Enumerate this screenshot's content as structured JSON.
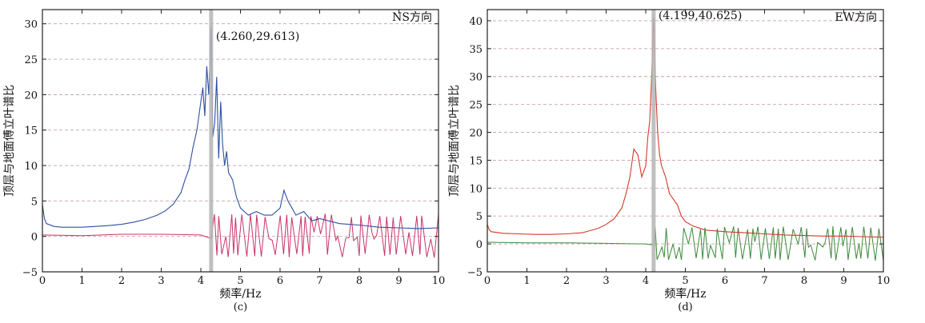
{
  "chart_data": [
    {
      "type": "line",
      "subtitle": "(c)",
      "corner_label": "NS方向",
      "xlabel": "频率/Hz",
      "ylabel": "顶层与地面傅立叶谱比",
      "xlim": [
        0,
        10
      ],
      "ylim": [
        -5,
        32
      ],
      "x_ticks": [
        "0",
        "1",
        "2",
        "3",
        "4",
        "5",
        "6",
        "7",
        "8",
        "9",
        "10"
      ],
      "y_ticks": [
        "−5",
        "0",
        "5",
        "10",
        "15",
        "20",
        "25",
        "30"
      ],
      "y_tick_values": [
        -5,
        0,
        5,
        10,
        15,
        20,
        25,
        30
      ],
      "grid": true,
      "peak": {
        "x": 4.26,
        "y": 29.613,
        "label": "(4.260,29.613)"
      },
      "colors": {
        "ratio": "#2e4fa0",
        "phase": "#c8336b",
        "marker": "#b5b5b5"
      },
      "series": [
        {
          "role": "ratio",
          "x": [
            0,
            0.05,
            0.1,
            0.3,
            0.5,
            0.8,
            1.0,
            1.3,
            1.6,
            2.0,
            2.3,
            2.6,
            2.9,
            3.1,
            3.3,
            3.5,
            3.6,
            3.7,
            3.8,
            3.9,
            4.0,
            4.05,
            4.1,
            4.15,
            4.2,
            4.26,
            4.3,
            4.35,
            4.4,
            4.45,
            4.5,
            4.55,
            4.6,
            4.65,
            4.7,
            4.8,
            4.9,
            5.0,
            5.2,
            5.4,
            5.6,
            5.8,
            6.0,
            6.1,
            6.2,
            6.3,
            6.4,
            6.6,
            6.8,
            7.0,
            7.5,
            8.0,
            8.5,
            9.0,
            9.5,
            10.0
          ],
          "values": [
            4.5,
            2.5,
            1.8,
            1.4,
            1.3,
            1.3,
            1.3,
            1.4,
            1.5,
            1.7,
            2.0,
            2.4,
            3.0,
            3.6,
            4.5,
            6.2,
            8.0,
            9.5,
            12.5,
            15.0,
            19.0,
            21.0,
            17.0,
            24.0,
            20.0,
            29.6,
            14.0,
            16.0,
            22.5,
            11.0,
            19.0,
            13.0,
            10.0,
            12.0,
            9.0,
            8.0,
            5.5,
            4.0,
            3.0,
            3.5,
            3.0,
            3.0,
            4.0,
            6.5,
            5.0,
            4.0,
            3.0,
            3.5,
            2.2,
            2.5,
            1.8,
            1.6,
            1.3,
            1.2,
            1.1,
            1.2
          ]
        },
        {
          "role": "phase",
          "x": [
            0,
            1,
            2,
            3,
            4,
            4.26
          ],
          "values": [
            0.2,
            0.1,
            0.3,
            0.3,
            0.2,
            -0.3
          ],
          "oscillating": {
            "from": 4.26,
            "to": 10.0,
            "min": -3.0,
            "max": 3.2
          }
        }
      ]
    },
    {
      "type": "line",
      "subtitle": "(d)",
      "corner_label": "EW方向",
      "xlabel": "频率/Hz",
      "ylabel": "顶层与地面傅立叶谱比",
      "xlim": [
        0,
        10
      ],
      "ylim": [
        -5,
        42
      ],
      "x_ticks": [
        "0",
        "1",
        "2",
        "3",
        "4",
        "5",
        "6",
        "7",
        "8",
        "9",
        "10"
      ],
      "y_ticks": [
        "−5",
        "0",
        "5",
        "10",
        "15",
        "20",
        "25",
        "30",
        "35",
        "40"
      ],
      "y_tick_values": [
        -5,
        0,
        5,
        10,
        15,
        20,
        25,
        30,
        35,
        40
      ],
      "grid": true,
      "peak": {
        "x": 4.199,
        "y": 40.625,
        "label": "(4.199,40.625)"
      },
      "colors": {
        "ratio": "#d23a2a",
        "phase": "#3c8a3c",
        "marker": "#b5b5b5"
      },
      "series": [
        {
          "role": "ratio",
          "x": [
            0,
            0.05,
            0.1,
            0.4,
            0.8,
            1.2,
            1.6,
            2.0,
            2.4,
            2.8,
            3.0,
            3.2,
            3.4,
            3.5,
            3.6,
            3.7,
            3.8,
            3.9,
            4.0,
            4.05,
            4.1,
            4.15,
            4.199,
            4.25,
            4.3,
            4.35,
            4.4,
            4.5,
            4.6,
            4.7,
            4.8,
            4.9,
            5.0,
            5.2,
            5.5,
            6.0,
            6.5,
            7.0,
            7.5,
            8.0,
            8.5,
            9.0,
            9.5,
            10.0
          ],
          "values": [
            3.5,
            2.5,
            2.2,
            1.9,
            1.8,
            1.7,
            1.7,
            1.8,
            2.0,
            2.8,
            3.5,
            4.5,
            6.5,
            9.0,
            12.0,
            17.0,
            16.0,
            12.0,
            14.0,
            19.0,
            22.0,
            30.0,
            40.6,
            28.0,
            20.0,
            16.0,
            14.0,
            12.0,
            9.0,
            8.0,
            7.0,
            5.0,
            4.0,
            3.2,
            2.5,
            2.2,
            2.0,
            1.8,
            1.6,
            1.5,
            1.4,
            1.4,
            1.3,
            1.2
          ]
        },
        {
          "role": "phase",
          "x": [
            0,
            1,
            2,
            3,
            4,
            4.2
          ],
          "values": [
            0.3,
            0.2,
            0.2,
            0.1,
            0.0,
            -0.2
          ],
          "oscillating": {
            "from": 4.2,
            "to": 10.0,
            "min": -3.0,
            "max": 3.2
          }
        }
      ]
    }
  ]
}
